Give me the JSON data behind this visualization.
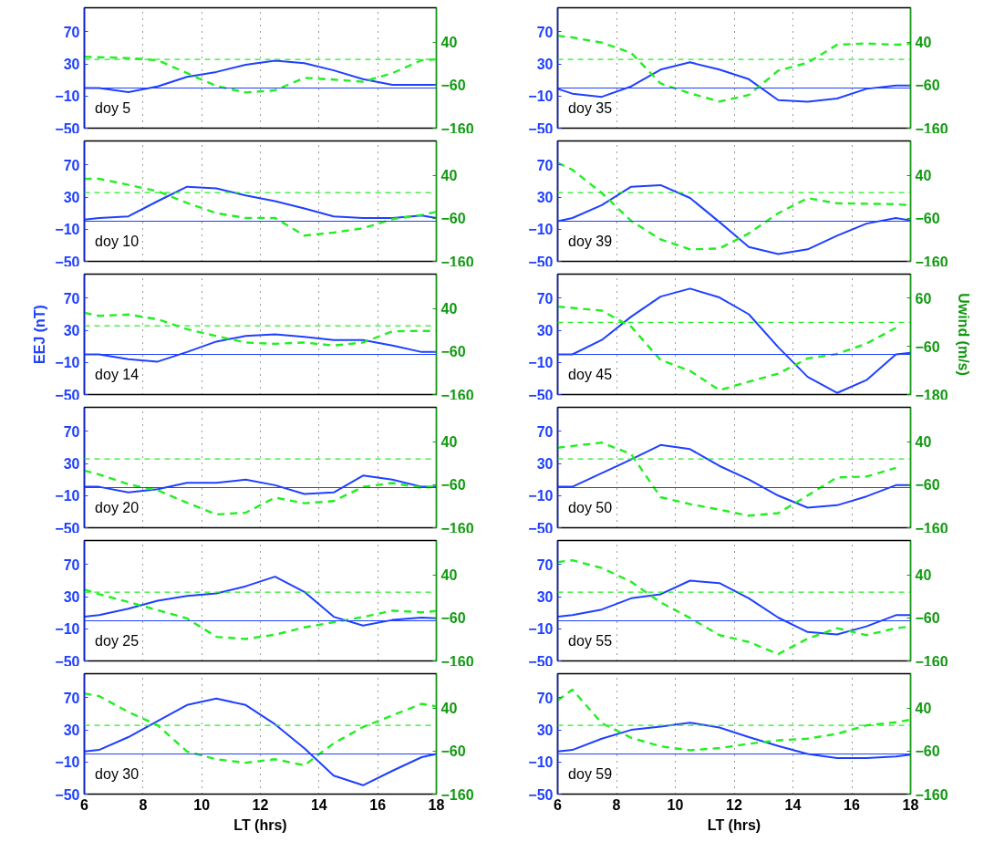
{
  "chart_data": [
    {
      "type": "line",
      "annotations": [
        "doy 5"
      ],
      "x": [
        6,
        6.5,
        7.5,
        8.5,
        9.5,
        10.5,
        11.5,
        12.5,
        13.5,
        14.5,
        15.5,
        16.5,
        17.5,
        18
      ],
      "xlim": [
        6,
        18
      ],
      "xticks": [
        6,
        8,
        10,
        12,
        14,
        16,
        18
      ],
      "ylim": [
        -50,
        100
      ],
      "yticks": [
        -50,
        -10,
        30,
        70
      ],
      "y2lim": [
        -160,
        120
      ],
      "y2ticks": [
        -160,
        -60,
        40
      ],
      "grid": "x",
      "tick_labels": "y",
      "ref_lines": [
        {
          "axis": "y",
          "value": 0,
          "color": "#1f40ff",
          "line_style": "solid"
        },
        {
          "axis": "y2",
          "value": 0,
          "color": "#22ee22",
          "line_style": "dashed"
        }
      ],
      "series": [
        {
          "color": "#1f40ff",
          "line_style": "solid",
          "values": [
            0,
            0,
            -5,
            2,
            14,
            20,
            29,
            34,
            31,
            22,
            11,
            4,
            4,
            4
          ]
        },
        {
          "color": "#22ee22",
          "axis": "y2",
          "line_style": "dashed",
          "values": [
            6,
            5,
            3,
            -2,
            -32,
            -62,
            -77,
            -72,
            -43,
            -47,
            -52,
            -32,
            -2,
            0
          ]
        }
      ]
    },
    {
      "type": "line",
      "annotations": [
        "doy 35"
      ],
      "x": [
        6,
        6.5,
        7.5,
        8.5,
        9.5,
        10.5,
        11.5,
        12.5,
        13.5,
        14.5,
        15.5,
        16.5,
        17.5,
        18
      ],
      "xlim": [
        6,
        18
      ],
      "xticks": [
        6,
        8,
        10,
        12,
        14,
        16,
        18
      ],
      "ylim": [
        -50,
        100
      ],
      "yticks": [
        -50,
        -10,
        30,
        70
      ],
      "y2lim": [
        -160,
        120
      ],
      "y2ticks": [
        -160,
        -60,
        40
      ],
      "grid": "x",
      "tick_labels": "y",
      "ref_lines": [
        {
          "axis": "y",
          "value": 0,
          "color": "#1f40ff",
          "line_style": "solid"
        },
        {
          "axis": "y2",
          "value": 0,
          "color": "#22ee22",
          "line_style": "dashed"
        }
      ],
      "series": [
        {
          "color": "#1f40ff",
          "line_style": "solid",
          "values": [
            -1,
            -7,
            -11,
            2,
            23,
            32,
            23,
            11,
            -15,
            -17,
            -13,
            -1,
            3,
            3
          ]
        },
        {
          "color": "#22ee22",
          "axis": "y2",
          "line_style": "dashed",
          "values": [
            55,
            51,
            39,
            15,
            -56,
            -79,
            -98,
            -83,
            -26,
            -8,
            34,
            37,
            34,
            36
          ]
        }
      ]
    },
    {
      "type": "line",
      "annotations": [
        "doy 10"
      ],
      "x": [
        6,
        6.5,
        7.5,
        8.5,
        9.5,
        10.5,
        11.5,
        12.5,
        13.5,
        14.5,
        15.5,
        16.5,
        17.5,
        18
      ],
      "xlim": [
        6,
        18
      ],
      "xticks": [
        6,
        8,
        10,
        12,
        14,
        16,
        18
      ],
      "ylim": [
        -50,
        100
      ],
      "yticks": [
        -50,
        -10,
        30,
        70
      ],
      "y2lim": [
        -160,
        120
      ],
      "y2ticks": [
        -160,
        -60,
        40
      ],
      "grid": "x",
      "tick_labels": "y",
      "ref_lines": [
        {
          "axis": "y",
          "value": 0,
          "color": "#1f40ff",
          "line_style": "solid"
        },
        {
          "axis": "y2",
          "value": 0,
          "color": "#22ee22",
          "line_style": "dashed"
        }
      ],
      "series": [
        {
          "color": "#1f40ff",
          "line_style": "solid",
          "values": [
            2,
            4,
            6,
            25,
            43,
            41,
            32,
            25,
            16,
            6,
            4,
            4,
            7,
            4
          ]
        },
        {
          "color": "#22ee22",
          "axis": "y2",
          "line_style": "dashed",
          "values": [
            32,
            32,
            18,
            3,
            -24,
            -48,
            -59,
            -59,
            -100,
            -93,
            -83,
            -62,
            -52,
            -45
          ]
        }
      ]
    },
    {
      "type": "line",
      "annotations": [
        "doy 39"
      ],
      "x": [
        6,
        6.5,
        7.5,
        8.5,
        9.5,
        10.5,
        11.5,
        12.5,
        13.5,
        14.5,
        15.5,
        16.5,
        17.5,
        18
      ],
      "xlim": [
        6,
        18
      ],
      "xticks": [
        6,
        8,
        10,
        12,
        14,
        16,
        18
      ],
      "ylim": [
        -50,
        100
      ],
      "yticks": [
        -50,
        -10,
        30,
        70
      ],
      "y2lim": [
        -160,
        120
      ],
      "y2ticks": [
        -160,
        -60,
        40
      ],
      "grid": "x",
      "tick_labels": "y",
      "ref_lines": [
        {
          "axis": "y",
          "value": 0,
          "color": "#1f40ff",
          "line_style": "solid"
        },
        {
          "axis": "y2",
          "value": 0,
          "color": "#22ee22",
          "line_style": "dashed"
        }
      ],
      "series": [
        {
          "color": "#1f40ff",
          "line_style": "solid",
          "values": [
            0,
            4,
            20,
            43,
            45,
            29,
            -1,
            -32,
            -41,
            -35,
            -18,
            -3,
            4,
            1
          ]
        },
        {
          "color": "#22ee22",
          "axis": "y2",
          "line_style": "dashed",
          "values": [
            69,
            53,
            -1,
            -66,
            -109,
            -132,
            -130,
            -95,
            -48,
            -13,
            -25,
            -26,
            -27,
            -30
          ]
        }
      ]
    },
    {
      "type": "line",
      "annotations": [
        "doy 14"
      ],
      "ylabel": "EEJ (nT)",
      "x": [
        6,
        6.5,
        7.5,
        8.5,
        9.5,
        10.5,
        11.5,
        12.5,
        13.5,
        14.5,
        15.5,
        16.5,
        17.5,
        18
      ],
      "xlim": [
        6,
        18
      ],
      "xticks": [
        6,
        8,
        10,
        12,
        14,
        16,
        18
      ],
      "ylim": [
        -50,
        100
      ],
      "yticks": [
        -50,
        -10,
        30,
        70
      ],
      "y2lim": [
        -160,
        120
      ],
      "y2ticks": [
        -160,
        -60,
        40
      ],
      "grid": "x",
      "tick_labels": "y",
      "ref_lines": [
        {
          "axis": "y",
          "value": 0,
          "color": "#1f40ff",
          "line_style": "solid"
        },
        {
          "axis": "y2",
          "value": 0,
          "color": "#22ee22",
          "line_style": "dashed"
        }
      ],
      "series": [
        {
          "color": "#1f40ff",
          "line_style": "solid",
          "values": [
            0,
            0,
            -6,
            -9,
            3,
            16,
            23,
            25,
            22,
            18,
            18,
            11,
            3,
            3
          ]
        },
        {
          "color": "#22ee22",
          "axis": "y2",
          "line_style": "dashed",
          "values": [
            30,
            23,
            26,
            15,
            -8,
            -24,
            -39,
            -42,
            -39,
            -46,
            -39,
            -13,
            -12,
            -12
          ]
        }
      ]
    },
    {
      "type": "line",
      "annotations": [
        "doy 45"
      ],
      "y2label": "Uwind (m/s)",
      "x": [
        6,
        6.5,
        7.5,
        8.5,
        9.5,
        10.5,
        11.5,
        12.5,
        13.5,
        14.5,
        15.5,
        16.5,
        17.5,
        18
      ],
      "xlim": [
        6,
        18
      ],
      "xticks": [
        6,
        8,
        10,
        12,
        14,
        16,
        18
      ],
      "ylim": [
        -50,
        100
      ],
      "yticks": [
        -50,
        -10,
        30,
        70
      ],
      "y2lim": [
        -180,
        120
      ],
      "y2ticks": [
        -180,
        -60,
        60
      ],
      "grid": "x",
      "tick_labels": "y",
      "ref_lines": [
        {
          "axis": "y",
          "value": 0,
          "color": "#1f40ff",
          "line_style": "solid"
        },
        {
          "axis": "y2",
          "value": 0,
          "color": "#22ee22",
          "line_style": "dashed"
        }
      ],
      "series": [
        {
          "color": "#1f40ff",
          "line_style": "solid",
          "values": [
            0,
            0,
            18,
            47,
            72,
            82,
            71,
            50,
            9,
            -28,
            -48,
            -32,
            0,
            2
          ]
        },
        {
          "color": "#22ee22",
          "axis": "y2",
          "line_style": "dashed",
          "values": [
            39,
            36,
            29,
            -11,
            -94,
            -121,
            -169,
            -148,
            -128,
            -90,
            -79,
            -53,
            -14,
            null
          ]
        }
      ]
    },
    {
      "type": "line",
      "annotations": [
        "doy 20"
      ],
      "x": [
        6,
        6.5,
        7.5,
        8.5,
        9.5,
        10.5,
        11.5,
        12.5,
        13.5,
        14.5,
        15.5,
        16.5,
        17.5,
        18
      ],
      "xlim": [
        6,
        18
      ],
      "xticks": [
        6,
        8,
        10,
        12,
        14,
        16,
        18
      ],
      "ylim": [
        -50,
        100
      ],
      "yticks": [
        -50,
        -10,
        30,
        70
      ],
      "y2lim": [
        -160,
        120
      ],
      "y2ticks": [
        -160,
        -60,
        40
      ],
      "grid": "x",
      "tick_labels": "y",
      "ref_lines": [
        {
          "axis": "y",
          "value": 0,
          "color": "#1f40ff",
          "line_style": "solid"
        },
        {
          "axis": "y2",
          "value": 0,
          "color": "#22ee22",
          "line_style": "dashed"
        }
      ],
      "series": [
        {
          "color": "#1f40ff",
          "line_style": "solid",
          "values": [
            1,
            1,
            -6,
            -2,
            6,
            6,
            10,
            3,
            -8,
            -6,
            15,
            10,
            1,
            1
          ]
        },
        {
          "color": "#22ee22",
          "axis": "y2",
          "line_style": "dashed",
          "values": [
            -27,
            -36,
            -59,
            -73,
            -102,
            -129,
            -125,
            -90,
            -103,
            -98,
            -65,
            -56,
            -67,
            -65
          ]
        }
      ]
    },
    {
      "type": "line",
      "annotations": [
        "doy 50"
      ],
      "x": [
        6,
        6.5,
        7.5,
        8.5,
        9.5,
        10.5,
        11.5,
        12.5,
        13.5,
        14.5,
        15.5,
        16.5,
        17.5,
        18
      ],
      "xlim": [
        6,
        18
      ],
      "xticks": [
        6,
        8,
        10,
        12,
        14,
        16,
        18
      ],
      "ylim": [
        -50,
        100
      ],
      "yticks": [
        -50,
        -10,
        30,
        70
      ],
      "y2lim": [
        -160,
        120
      ],
      "y2ticks": [
        -160,
        -60,
        40
      ],
      "grid": "x",
      "tick_labels": "y",
      "ref_lines": [
        {
          "axis": "y",
          "value": 0,
          "color": "#1f40ff",
          "line_style": "solid"
        },
        {
          "axis": "y2",
          "value": 0,
          "color": "#22ee22",
          "line_style": "dashed"
        }
      ],
      "series": [
        {
          "color": "#1f40ff",
          "line_style": "solid",
          "values": [
            1,
            1,
            18,
            35,
            53,
            48,
            27,
            10,
            -10,
            -25,
            -22,
            -11,
            3,
            3
          ]
        },
        {
          "color": "#22ee22",
          "axis": "y2",
          "line_style": "dashed",
          "values": [
            26,
            30,
            38,
            11,
            -89,
            -105,
            -118,
            -132,
            -126,
            -85,
            -43,
            -41,
            -21,
            null
          ]
        }
      ]
    },
    {
      "type": "line",
      "annotations": [
        "doy 25"
      ],
      "x": [
        6,
        6.5,
        7.5,
        8.5,
        9.5,
        10.5,
        11.5,
        12.5,
        13.5,
        14.5,
        15.5,
        16.5,
        17.5,
        18
      ],
      "xlim": [
        6,
        18
      ],
      "xticks": [
        6,
        8,
        10,
        12,
        14,
        16,
        18
      ],
      "ylim": [
        -50,
        100
      ],
      "yticks": [
        -50,
        -10,
        30,
        70
      ],
      "y2lim": [
        -160,
        120
      ],
      "y2ticks": [
        -160,
        -60,
        40
      ],
      "grid": "x",
      "tick_labels": "y",
      "ref_lines": [
        {
          "axis": "y",
          "value": 0,
          "color": "#1f40ff",
          "line_style": "solid"
        },
        {
          "axis": "y2",
          "value": 0,
          "color": "#22ee22",
          "line_style": "dashed"
        }
      ],
      "series": [
        {
          "color": "#1f40ff",
          "line_style": "solid",
          "values": [
            5,
            7,
            15,
            25,
            31,
            34,
            43,
            55,
            36,
            5,
            -6,
            1,
            4,
            3
          ]
        },
        {
          "color": "#22ee22",
          "axis": "y2",
          "line_style": "dashed",
          "values": [
            6,
            -5,
            -23,
            -42,
            -61,
            -104,
            -109,
            -99,
            -82,
            -70,
            -58,
            -43,
            -47,
            -44
          ]
        }
      ]
    },
    {
      "type": "line",
      "annotations": [
        "doy 55"
      ],
      "x": [
        6,
        6.5,
        7.5,
        8.5,
        9.5,
        10.5,
        11.5,
        12.5,
        13.5,
        14.5,
        15.5,
        16.5,
        17.5,
        18
      ],
      "xlim": [
        6,
        18
      ],
      "xticks": [
        6,
        8,
        10,
        12,
        14,
        16,
        18
      ],
      "ylim": [
        -50,
        100
      ],
      "yticks": [
        -50,
        -10,
        30,
        70
      ],
      "y2lim": [
        -160,
        120
      ],
      "y2ticks": [
        -160,
        -60,
        40
      ],
      "grid": "x",
      "tick_labels": "y",
      "ref_lines": [
        {
          "axis": "y",
          "value": 0,
          "color": "#1f40ff",
          "line_style": "solid"
        },
        {
          "axis": "y2",
          "value": 0,
          "color": "#22ee22",
          "line_style": "dashed"
        }
      ],
      "series": [
        {
          "color": "#1f40ff",
          "line_style": "solid",
          "values": [
            5,
            7,
            14,
            28,
            33,
            50,
            47,
            28,
            4,
            -14,
            -17,
            -7,
            7,
            7
          ]
        },
        {
          "color": "#22ee22",
          "axis": "y2",
          "line_style": "dashed",
          "values": [
            70,
            74,
            56,
            24,
            -24,
            -60,
            -100,
            -116,
            -144,
            -108,
            -84,
            -100,
            -84,
            -80
          ]
        }
      ]
    },
    {
      "type": "line",
      "annotations": [
        "doy 30"
      ],
      "xlabel": "LT (hrs)",
      "x": [
        6,
        6.5,
        7.5,
        8.5,
        9.5,
        10.5,
        11.5,
        12.5,
        13.5,
        14.5,
        15.5,
        16.5,
        17.5,
        18
      ],
      "xlim": [
        6,
        18
      ],
      "xticks": [
        6,
        8,
        10,
        12,
        14,
        16,
        18
      ],
      "ylim": [
        -50,
        100
      ],
      "yticks": [
        -50,
        -10,
        30,
        70
      ],
      "y2lim": [
        -160,
        120
      ],
      "y2ticks": [
        -160,
        -60,
        40
      ],
      "grid": "x",
      "ref_lines": [
        {
          "axis": "y",
          "value": 0,
          "color": "#1f40ff",
          "line_style": "solid"
        },
        {
          "axis": "y2",
          "value": 0,
          "color": "#22ee22",
          "line_style": "dashed"
        }
      ],
      "series": [
        {
          "color": "#1f40ff",
          "line_style": "solid",
          "values": [
            3,
            5,
            21,
            41,
            61,
            69,
            61,
            37,
            7,
            -27,
            -39,
            -21,
            -4,
            0
          ]
        },
        {
          "color": "#22ee22",
          "axis": "y2",
          "line_style": "dashed",
          "values": [
            74,
            68,
            31,
            0,
            -61,
            -79,
            -87,
            -79,
            -93,
            -42,
            -4,
            23,
            50,
            44
          ]
        }
      ]
    },
    {
      "type": "line",
      "annotations": [
        "doy 59"
      ],
      "xlabel": "LT (hrs)",
      "x": [
        6,
        6.5,
        7.5,
        8.5,
        9.5,
        10.5,
        11.5,
        12.5,
        13.5,
        14.5,
        15.5,
        16.5,
        17.5,
        18
      ],
      "xlim": [
        6,
        18
      ],
      "xticks": [
        6,
        8,
        10,
        12,
        14,
        16,
        18
      ],
      "ylim": [
        -50,
        100
      ],
      "yticks": [
        -50,
        -10,
        30,
        70
      ],
      "y2lim": [
        -160,
        120
      ],
      "y2ticks": [
        -160,
        -60,
        40
      ],
      "grid": "x",
      "ref_lines": [
        {
          "axis": "y",
          "value": 0,
          "color": "#1f40ff",
          "line_style": "solid"
        },
        {
          "axis": "y2",
          "value": 0,
          "color": "#22ee22",
          "line_style": "dashed"
        }
      ],
      "series": [
        {
          "color": "#1f40ff",
          "line_style": "solid",
          "values": [
            3,
            5,
            19,
            30,
            34,
            39,
            33,
            21,
            10,
            0,
            -5,
            -5,
            -3,
            -1
          ]
        },
        {
          "color": "#22ee22",
          "axis": "y2",
          "line_style": "dashed",
          "values": [
            58,
            83,
            5,
            -29,
            -49,
            -58,
            -53,
            -43,
            -35,
            -31,
            -20,
            0,
            7,
            13
          ]
        }
      ]
    }
  ]
}
